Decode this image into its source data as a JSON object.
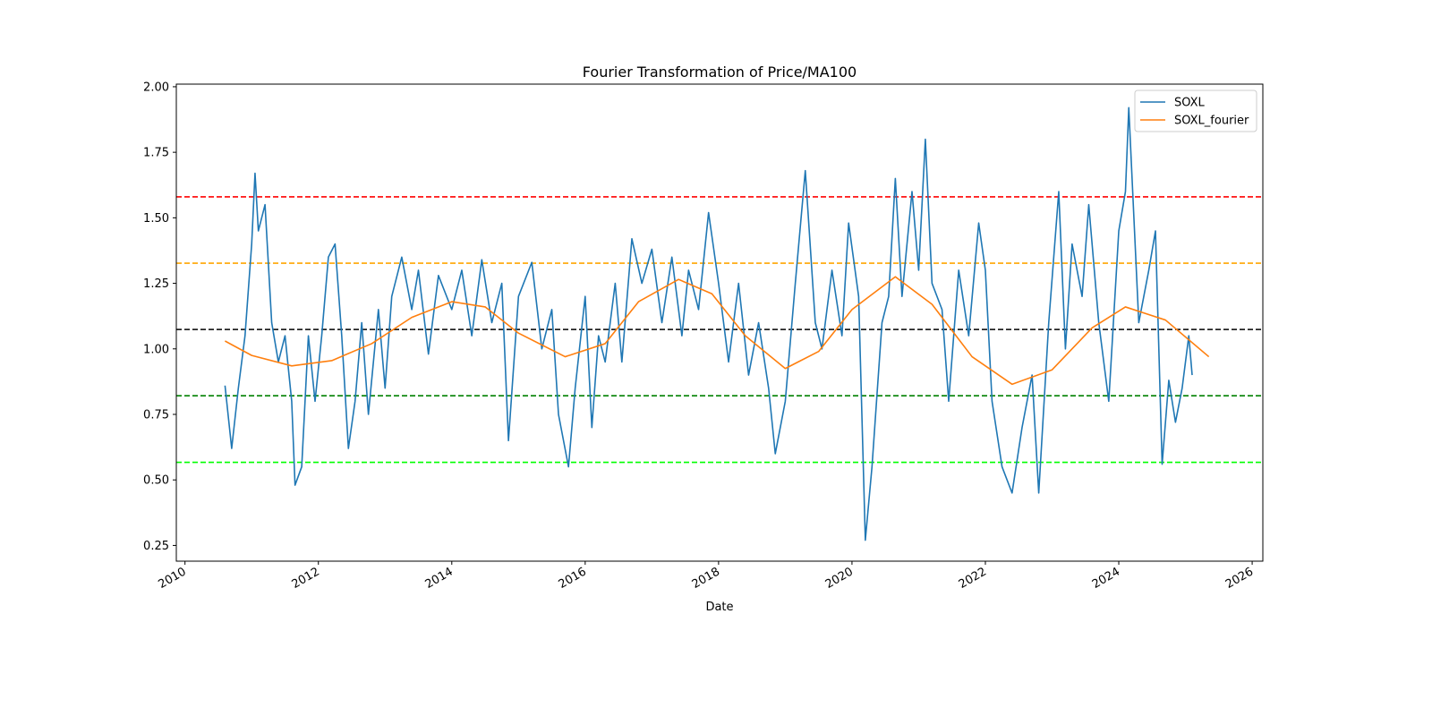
{
  "chart_data": {
    "type": "line",
    "title": "Fourier Transformation of Price/MA100",
    "x_label": "Date",
    "xlim": [
      2009.87,
      2026.16
    ],
    "xticks": [
      2010,
      2012,
      2014,
      2016,
      2018,
      2020,
      2022,
      2024,
      2026
    ],
    "ylim": [
      0.19,
      2.01
    ],
    "yticks": [
      {
        "value": 0.25,
        "label": "0.25"
      },
      {
        "value": 0.5,
        "label": "0.50"
      },
      {
        "value": 0.75,
        "label": "0.75"
      },
      {
        "value": 1,
        "label": "1.00"
      },
      {
        "value": 1.25,
        "label": "1.25"
      },
      {
        "value": 1.5,
        "label": "1.50"
      },
      {
        "value": 1.75,
        "label": "1.75"
      },
      {
        "value": 2,
        "label": "2.00"
      }
    ],
    "legend": "upper right",
    "hlines": [
      {
        "value": 1.58,
        "color": "#ff0000"
      },
      {
        "value": 1.327,
        "color": "#ffa500"
      },
      {
        "value": 1.074,
        "color": "#000000"
      },
      {
        "value": 0.821,
        "color": "#008000"
      },
      {
        "value": 0.567,
        "color": "#00ff00"
      }
    ],
    "series": [
      {
        "name": "SOXL",
        "color": "#1f77b4",
        "x": [
          2010.6,
          2010.7,
          2010.8,
          2010.9,
          2011.0,
          2011.05,
          2011.1,
          2011.2,
          2011.3,
          2011.4,
          2011.5,
          2011.6,
          2011.65,
          2011.75,
          2011.85,
          2011.95,
          2012.05,
          2012.15,
          2012.25,
          2012.35,
          2012.45,
          2012.55,
          2012.65,
          2012.75,
          2012.9,
          2013.0,
          2013.1,
          2013.25,
          2013.4,
          2013.5,
          2013.65,
          2013.8,
          2014.0,
          2014.15,
          2014.3,
          2014.45,
          2014.6,
          2014.75,
          2014.85,
          2015.0,
          2015.2,
          2015.35,
          2015.5,
          2015.6,
          2015.75,
          2015.85,
          2016.0,
          2016.1,
          2016.2,
          2016.3,
          2016.45,
          2016.55,
          2016.7,
          2016.85,
          2017.0,
          2017.15,
          2017.3,
          2017.45,
          2017.55,
          2017.7,
          2017.85,
          2018.0,
          2018.15,
          2018.3,
          2018.45,
          2018.6,
          2018.75,
          2018.85,
          2019.0,
          2019.15,
          2019.3,
          2019.45,
          2019.55,
          2019.7,
          2019.85,
          2019.95,
          2020.1,
          2020.2,
          2020.3,
          2020.45,
          2020.55,
          2020.65,
          2020.75,
          2020.9,
          2021.0,
          2021.1,
          2021.2,
          2021.35,
          2021.45,
          2021.6,
          2021.75,
          2021.9,
          2022.0,
          2022.1,
          2022.25,
          2022.4,
          2022.55,
          2022.7,
          2022.8,
          2022.95,
          2023.1,
          2023.2,
          2023.3,
          2023.45,
          2023.55,
          2023.7,
          2023.85,
          2024.0,
          2024.1,
          2024.15,
          2024.3,
          2024.45,
          2024.55,
          2024.65,
          2024.75,
          2024.85,
          2024.95,
          2025.05,
          2025.1
        ],
        "values": [
          0.86,
          0.62,
          0.85,
          1.05,
          1.4,
          1.67,
          1.45,
          1.55,
          1.1,
          0.95,
          1.05,
          0.8,
          0.48,
          0.55,
          1.05,
          0.8,
          1.05,
          1.35,
          1.4,
          1.05,
          0.62,
          0.8,
          1.1,
          0.75,
          1.15,
          0.85,
          1.2,
          1.35,
          1.15,
          1.3,
          0.98,
          1.28,
          1.15,
          1.3,
          1.05,
          1.34,
          1.1,
          1.25,
          0.65,
          1.2,
          1.33,
          1.0,
          1.15,
          0.75,
          0.55,
          0.85,
          1.2,
          0.7,
          1.05,
          0.95,
          1.25,
          0.95,
          1.42,
          1.25,
          1.38,
          1.1,
          1.35,
          1.05,
          1.3,
          1.15,
          1.52,
          1.25,
          0.95,
          1.25,
          0.9,
          1.1,
          0.85,
          0.6,
          0.8,
          1.25,
          1.68,
          1.1,
          1.0,
          1.3,
          1.05,
          1.48,
          1.2,
          0.27,
          0.55,
          1.1,
          1.2,
          1.65,
          1.2,
          1.6,
          1.3,
          1.8,
          1.25,
          1.15,
          0.8,
          1.3,
          1.05,
          1.48,
          1.3,
          0.8,
          0.55,
          0.45,
          0.7,
          0.9,
          0.45,
          1.1,
          1.6,
          1.0,
          1.4,
          1.2,
          1.55,
          1.1,
          0.8,
          1.45,
          1.6,
          1.92,
          1.1,
          1.3,
          1.45,
          0.56,
          0.88,
          0.72,
          0.85,
          1.05,
          0.9
        ]
      },
      {
        "name": "SOXL_fourier",
        "color": "#ff7f0e",
        "x": [
          2010.6,
          2011.0,
          2011.6,
          2012.2,
          2012.8,
          2013.4,
          2014.0,
          2014.5,
          2015.0,
          2015.7,
          2016.3,
          2016.8,
          2017.4,
          2017.9,
          2018.4,
          2019.0,
          2019.5,
          2020.0,
          2020.65,
          2021.2,
          2021.8,
          2022.4,
          2023.0,
          2023.6,
          2024.1,
          2024.7,
          2025.35
        ],
        "values": [
          1.03,
          0.975,
          0.935,
          0.955,
          1.02,
          1.12,
          1.18,
          1.16,
          1.06,
          0.97,
          1.02,
          1.18,
          1.265,
          1.21,
          1.05,
          0.925,
          0.99,
          1.15,
          1.275,
          1.17,
          0.97,
          0.865,
          0.92,
          1.08,
          1.16,
          1.11,
          0.97
        ]
      }
    ]
  }
}
